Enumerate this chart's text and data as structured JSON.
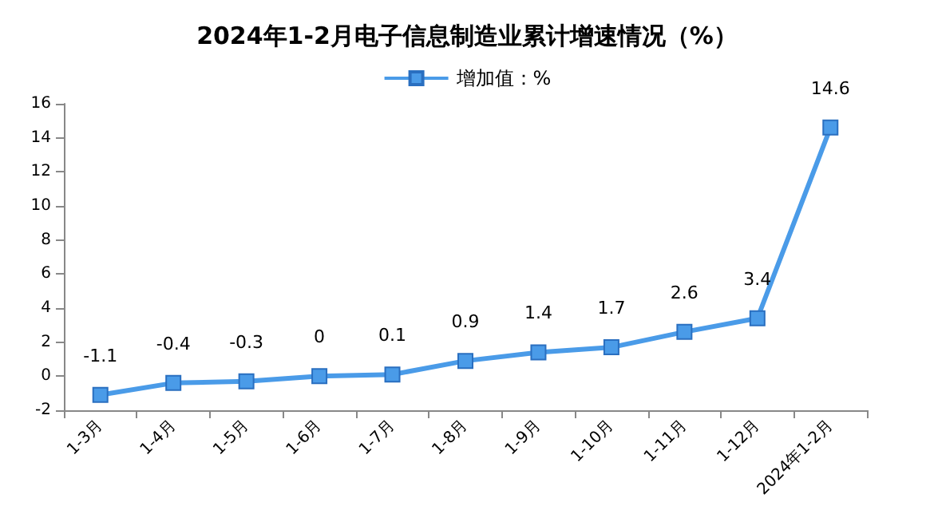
{
  "chart_data": {
    "type": "line",
    "title": "2024年1-2月电子信息制造业累计增速情况（%）",
    "categories": [
      "1-3月",
      "1-4月",
      "1-5月",
      "1-6月",
      "1-7月",
      "1-8月",
      "1-9月",
      "1-10月",
      "1-11月",
      "1-12月",
      "2024年1-2月"
    ],
    "series": [
      {
        "name": "增加值：%",
        "color": "#4a9be8",
        "values": [
          -1.1,
          -0.4,
          -0.3,
          0,
          0.1,
          0.9,
          1.4,
          1.7,
          2.6,
          3.4,
          14.6
        ]
      }
    ],
    "ylim": [
      -2,
      16
    ],
    "yticks": [
      -2,
      0,
      2,
      4,
      6,
      8,
      10,
      12,
      14,
      16
    ],
    "grid": false,
    "legend": "top",
    "marker": "square",
    "data_labels": true
  }
}
